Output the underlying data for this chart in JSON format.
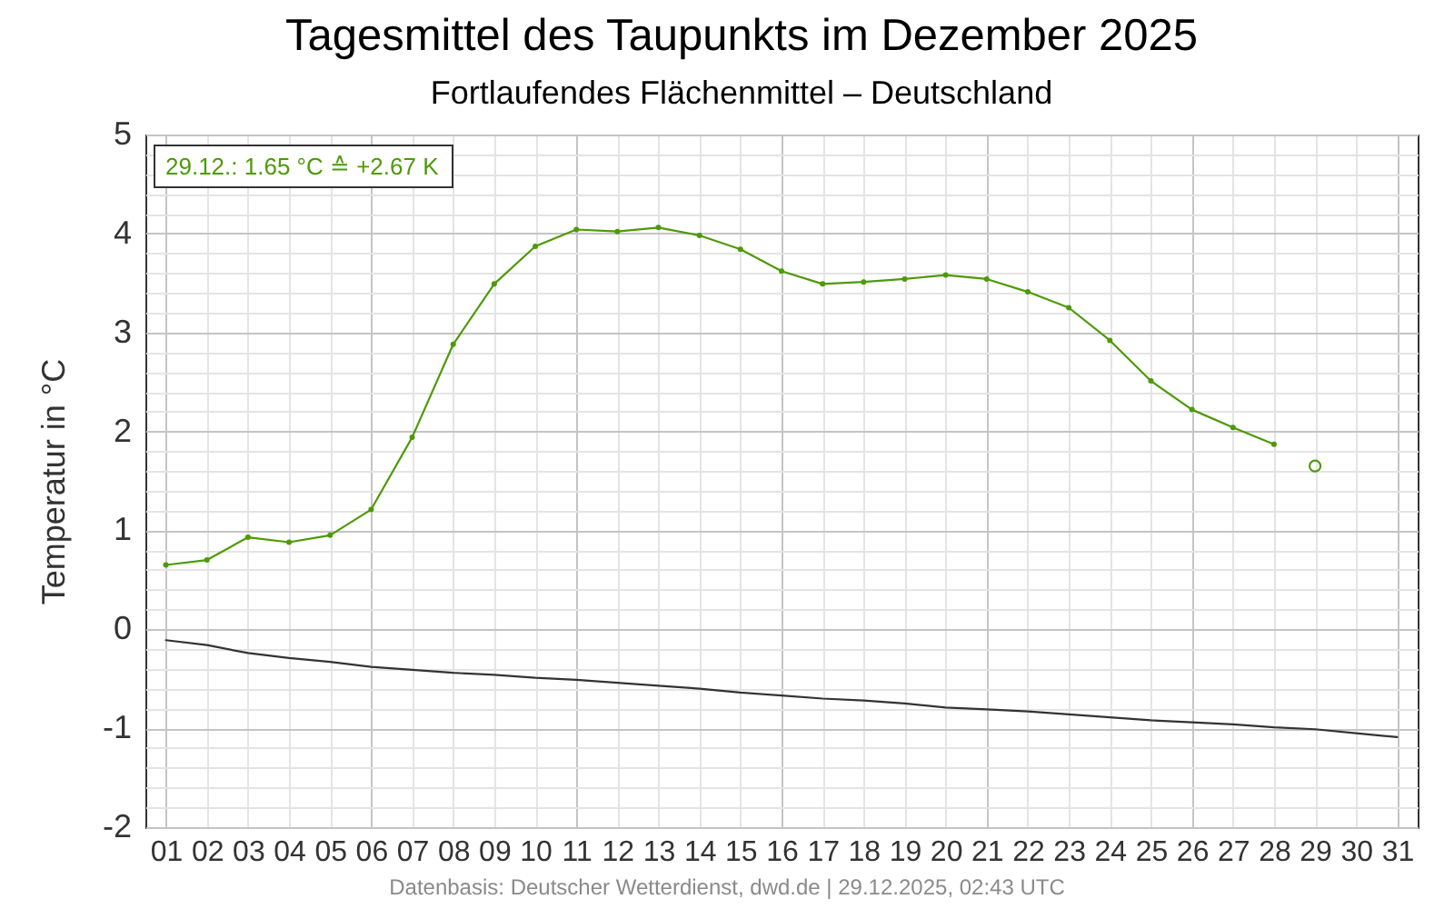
{
  "chart_data": {
    "type": "line",
    "title": "Tagesmittel des Taupunkts im Dezember 2025",
    "subtitle": "Fortlaufendes Flächenmittel – Deutschland",
    "ylabel": "Temperatur in °C",
    "x": [
      1,
      2,
      3,
      4,
      5,
      6,
      7,
      8,
      9,
      10,
      11,
      12,
      13,
      14,
      15,
      16,
      17,
      18,
      19,
      20,
      21,
      22,
      23,
      24,
      25,
      26,
      27,
      28,
      29,
      30,
      31
    ],
    "series": [
      {
        "color": "#4d9a06",
        "marker": "circle",
        "x": [
          1,
          2,
          3,
          4,
          5,
          6,
          7,
          8,
          9,
          10,
          11,
          12,
          13,
          14,
          15,
          16,
          17,
          18,
          19,
          20,
          21,
          22,
          23,
          24,
          25,
          26,
          27,
          28
        ],
        "values": [
          0.65,
          0.7,
          0.93,
          0.88,
          0.95,
          1.21,
          1.94,
          2.88,
          3.49,
          3.87,
          4.04,
          4.02,
          4.06,
          3.98,
          3.84,
          3.62,
          3.49,
          3.51,
          3.54,
          3.58,
          3.54,
          3.41,
          3.25,
          2.92,
          2.51,
          2.22,
          2.04,
          1.87
        ]
      },
      {
        "color": "#333333",
        "values": [
          -0.11,
          -0.16,
          -0.24,
          -0.29,
          -0.33,
          -0.38,
          -0.41,
          -0.44,
          -0.46,
          -0.49,
          -0.51,
          -0.54,
          -0.57,
          -0.6,
          -0.64,
          -0.67,
          -0.7,
          -0.72,
          -0.75,
          -0.79,
          -0.81,
          -0.83,
          -0.86,
          -0.89,
          -0.92,
          -0.94,
          -0.96,
          -0.99,
          -1.01,
          -1.05,
          -1.09
        ]
      },
      {
        "type": "scatter",
        "color": "#4d9a06",
        "marker": "circle",
        "x": [
          29
        ],
        "values": [
          1.65
        ]
      }
    ],
    "xlim": [
      0.5,
      31.5
    ],
    "xticks": [
      {
        "value": 1,
        "label": "01"
      },
      {
        "value": 2,
        "label": "02"
      },
      {
        "value": 3,
        "label": "03"
      },
      {
        "value": 4,
        "label": "04"
      },
      {
        "value": 5,
        "label": "05"
      },
      {
        "value": 6,
        "label": "06"
      },
      {
        "value": 7,
        "label": "07"
      },
      {
        "value": 8,
        "label": "08"
      },
      {
        "value": 9,
        "label": "09"
      },
      10,
      11,
      12,
      13,
      14,
      15,
      16,
      17,
      18,
      19,
      20,
      21,
      22,
      23,
      24,
      25,
      26,
      27,
      28,
      29,
      30,
      31
    ],
    "ylim": [
      -2,
      5
    ],
    "yticks": [
      -2,
      {
        "value": -1.8,
        "label": null
      },
      {
        "value": -1.6,
        "label": null
      },
      {
        "value": -1.4,
        "label": null
      },
      {
        "value": -1.2,
        "label": null
      },
      -1,
      {
        "value": -0.8,
        "label": null
      },
      {
        "value": -0.6,
        "label": null
      },
      {
        "value": -0.4,
        "label": null
      },
      {
        "value": -0.2,
        "label": null
      },
      0,
      {
        "value": 0.2,
        "label": null
      },
      {
        "value": 0.4,
        "label": null
      },
      {
        "value": 0.6,
        "label": null
      },
      {
        "value": 0.8,
        "label": null
      },
      1,
      {
        "value": 1.2,
        "label": null
      },
      {
        "value": 1.4,
        "label": null
      },
      {
        "value": 1.6,
        "label": null
      },
      {
        "value": 1.8,
        "label": null
      },
      2,
      {
        "value": 2.2,
        "label": null
      },
      {
        "value": 2.4,
        "label": null
      },
      {
        "value": 2.6,
        "label": null
      },
      {
        "value": 2.8,
        "label": null
      },
      3,
      {
        "value": 3.2,
        "label": null
      },
      {
        "value": 3.4,
        "label": null
      },
      {
        "value": 3.6,
        "label": null
      },
      {
        "value": 3.8,
        "label": null
      },
      4,
      {
        "value": 4.2,
        "label": null
      },
      {
        "value": 4.4,
        "label": null
      },
      {
        "value": 4.6,
        "label": null
      },
      {
        "value": 4.8,
        "label": null
      },
      5
    ],
    "grid": true,
    "annotations": [
      "29.12.: 1.65 °C ≙ +2.67 K",
      "Datenbasis: Deutscher Wetterdienst, dwd.de | 29.12.2025, 02:43 UTC"
    ]
  }
}
